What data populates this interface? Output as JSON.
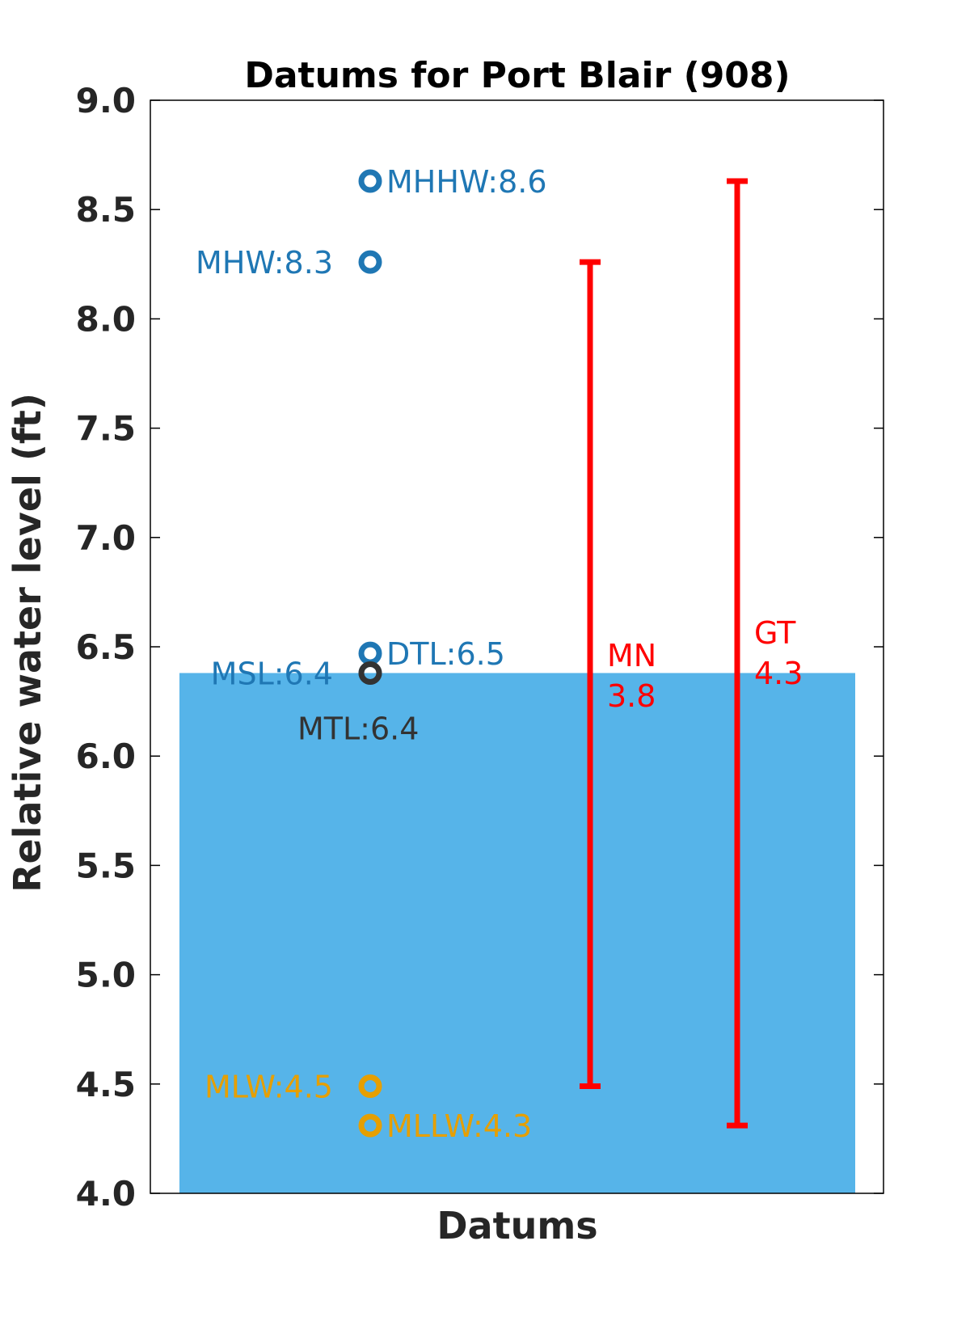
{
  "chart_data": {
    "type": "scatter",
    "title": "Datums for Port Blair (908)",
    "xlabel": "Datums",
    "ylabel": "Relative water level (ft)",
    "ylim": [
      4.0,
      9.0
    ],
    "yticks": [
      "4.0",
      "4.5",
      "5.0",
      "5.5",
      "6.0",
      "6.5",
      "7.0",
      "7.5",
      "8.0",
      "8.5",
      "9.0"
    ],
    "grid": false,
    "colors": {
      "blue": "#1f77b4",
      "dark": "#333333",
      "orange": "#e69f00",
      "red": "#ff0000",
      "fill": "#56b4e9"
    },
    "fill_level": 6.38,
    "points": [
      {
        "name": "MHHW",
        "label": "MHHW:8.6",
        "value": 8.63,
        "color": "#1f77b4",
        "label_side": "right"
      },
      {
        "name": "MHW",
        "label": "MHW:8.3",
        "value": 8.26,
        "color": "#1f77b4",
        "label_side": "left"
      },
      {
        "name": "DTL",
        "label": "DTL:6.5",
        "value": 6.47,
        "color": "#1f77b4",
        "label_side": "right"
      },
      {
        "name": "MSL",
        "label": "MSL:6.4",
        "value": 6.38,
        "color": "#1f77b4",
        "label_side": "left"
      },
      {
        "name": "MTL",
        "label": "MTL:6.4",
        "value": 6.38,
        "color": "#333333",
        "label_side": "below"
      },
      {
        "name": "MLW",
        "label": "MLW:4.5",
        "value": 4.49,
        "color": "#e69f00",
        "label_side": "left"
      },
      {
        "name": "MLLW",
        "label": "MLLW:4.3",
        "value": 4.31,
        "color": "#e69f00",
        "label_side": "right"
      }
    ],
    "ranges": [
      {
        "name": "MN",
        "label": "MN",
        "value_text": "3.8",
        "low": 4.49,
        "high": 8.26
      },
      {
        "name": "GT",
        "label": "GT",
        "value_text": "4.3",
        "low": 4.31,
        "high": 8.63
      }
    ]
  }
}
